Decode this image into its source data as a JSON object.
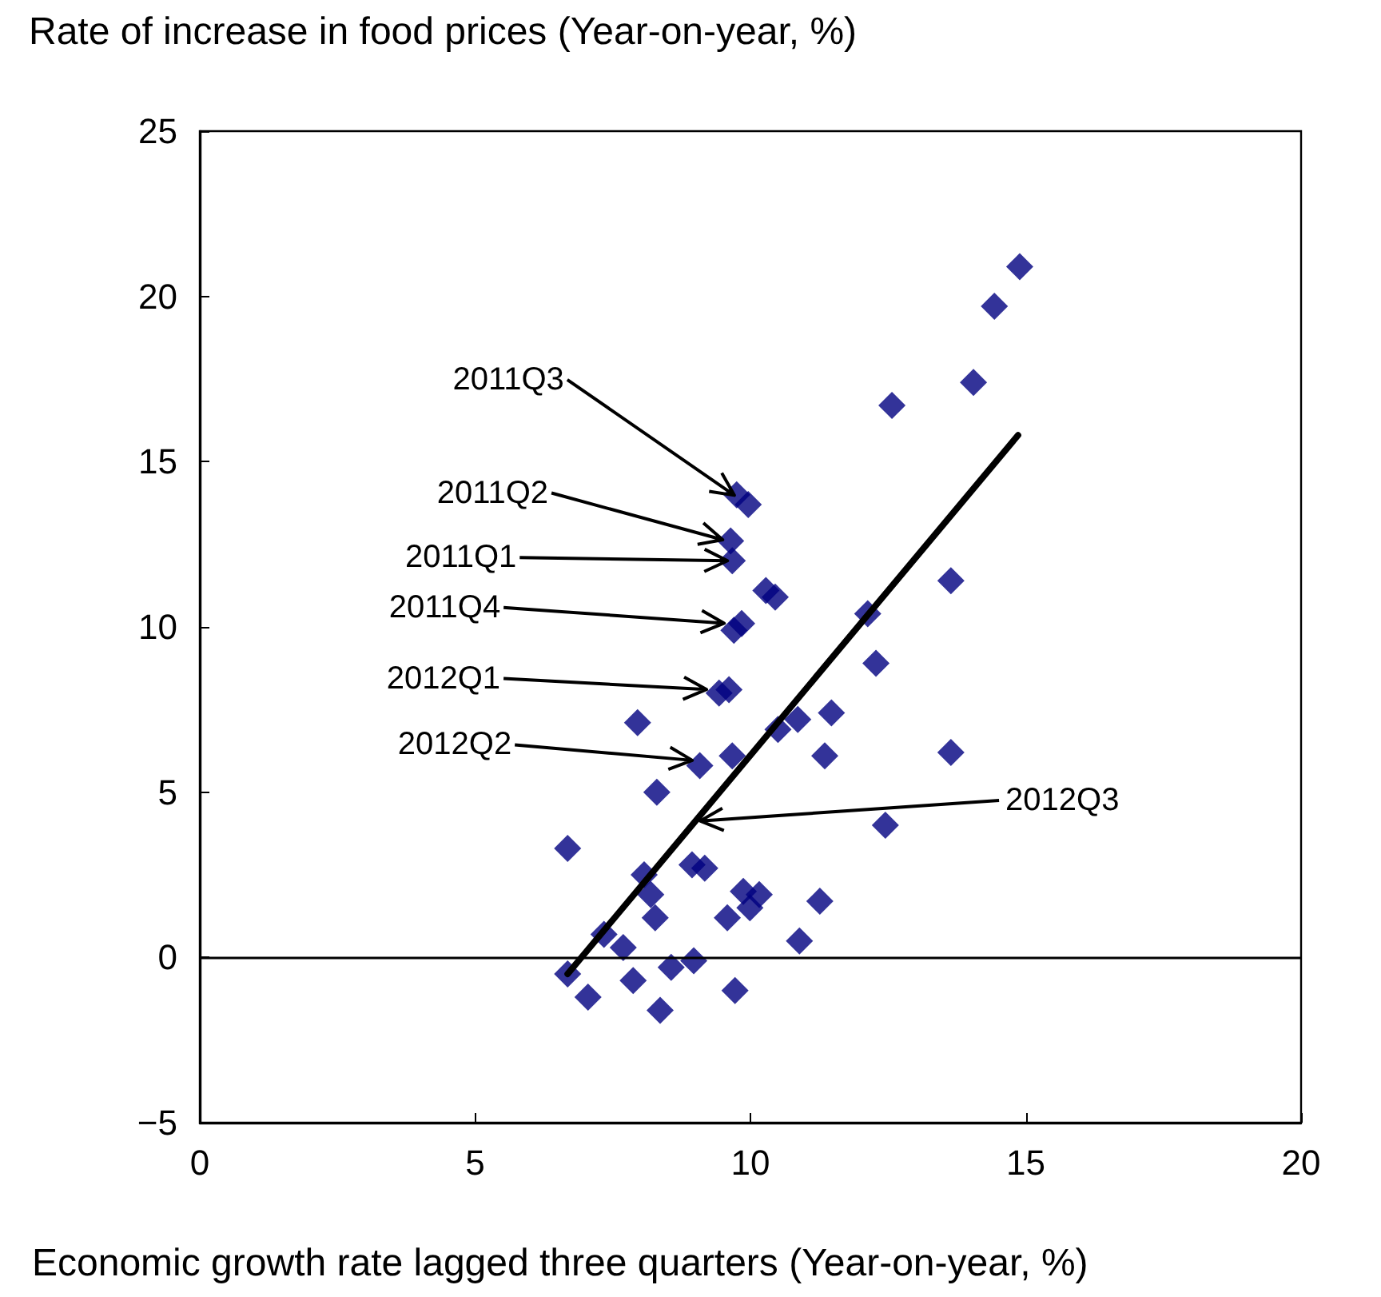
{
  "chart_data": {
    "type": "scatter",
    "xlabel": "Economic growth rate lagged three quarters (Year-on-year, %)",
    "ylabel": "Rate of increase in food prices (Year-on-year, %)",
    "xlim": [
      0,
      20
    ],
    "xticks": [
      0,
      5,
      10,
      15,
      20
    ],
    "ylim": [
      -5,
      25
    ],
    "yticks": [
      -5,
      0,
      5,
      10,
      15,
      20,
      25
    ],
    "grid": false,
    "marker": "diamond",
    "ref_lines": [
      {
        "axis": "y",
        "value": 0,
        "color": "#000000"
      }
    ],
    "series": [
      {
        "color": "#000080",
        "x": [
          14.89,
          14.43,
          14.05,
          12.57,
          9.96,
          9.75,
          9.64,
          9.67,
          10.45,
          10.28,
          9.7,
          9.84,
          9.43,
          9.61,
          13.64,
          12.13,
          12.28,
          7.95,
          10.5,
          10.86,
          11.47,
          11.35,
          9.08,
          9.67,
          8.3,
          13.64,
          12.45,
          6.68,
          8.07,
          8.19,
          8.27,
          8.94,
          9.17,
          9.87,
          10.16,
          9.58,
          9.99,
          11.26,
          10.89,
          7.34,
          7.69,
          6.68,
          7.87,
          8.56,
          8.97,
          7.05,
          8.36,
          9.72
        ],
        "values": [
          20.9,
          19.7,
          17.4,
          16.7,
          13.7,
          14.0,
          12.6,
          12.0,
          10.9,
          11.1,
          9.9,
          10.1,
          8.0,
          8.1,
          11.4,
          10.4,
          8.9,
          7.1,
          6.9,
          7.2,
          7.4,
          6.1,
          5.8,
          6.1,
          5.0,
          6.2,
          4.0,
          3.3,
          2.5,
          1.9,
          1.2,
          2.8,
          2.7,
          2.0,
          1.9,
          1.2,
          1.5,
          1.7,
          0.5,
          0.7,
          0.3,
          -0.5,
          -0.7,
          -0.3,
          -0.1,
          -1.2,
          -1.6,
          -1.0
        ]
      },
      {
        "type": "line",
        "color": "#000000",
        "marker": "none",
        "line_style": "solid",
        "x": [
          6.68,
          14.86
        ],
        "values": [
          -0.5,
          15.8
        ]
      }
    ],
    "annotations": [
      {
        "text": "2011Q3",
        "x": 9.78,
        "y": 13.9
      },
      {
        "text": "2011Q2",
        "x": 9.58,
        "y": 12.6
      },
      {
        "text": "2011Q1",
        "x": 9.67,
        "y": 12.0
      },
      {
        "text": "2011Q4",
        "x": 9.61,
        "y": 10.1
      },
      {
        "text": "2012Q1",
        "x": 9.29,
        "y": 8.1
      },
      {
        "text": "2012Q2",
        "x": 9.03,
        "y": 5.95
      },
      {
        "text": "2012Q3",
        "x": 9.0,
        "y": 4.12
      }
    ]
  }
}
